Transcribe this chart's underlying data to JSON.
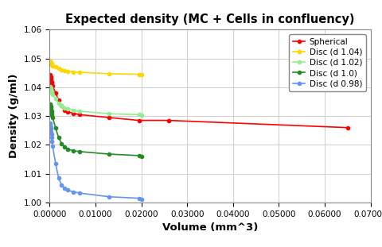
{
  "title": "Expected density (MC + Cells in confluency)",
  "xlabel": "Volume (mm^3)",
  "ylabel": "Density (g/ml)",
  "xlim": [
    0,
    0.07
  ],
  "ylim": [
    1.0,
    1.06
  ],
  "xticks": [
    0.0,
    0.01,
    0.02,
    0.03,
    0.04,
    0.05,
    0.06,
    0.07
  ],
  "xtick_labels": [
    "0.00000",
    "0.01000",
    "0.02000",
    "0.03000",
    "0.04000",
    "0.05000",
    "0.06000",
    "0.07000"
  ],
  "yticks": [
    1.0,
    1.01,
    1.02,
    1.03,
    1.04,
    1.05,
    1.06
  ],
  "series": [
    {
      "label": "Spherical",
      "color": "#FF0000",
      "x": [
        6.5e-05,
        0.00013,
        0.000195,
        0.00026,
        0.000325,
        0.00039,
        0.000455,
        0.00052,
        0.00065,
        0.0013,
        0.00195,
        0.0026,
        0.00325,
        0.0039,
        0.0052,
        0.0065,
        0.013,
        0.0195,
        0.026,
        0.065
      ],
      "y": [
        1.0445,
        1.044,
        1.0435,
        1.043,
        1.0425,
        1.042,
        1.0415,
        1.041,
        1.0405,
        1.038,
        1.0355,
        1.0335,
        1.032,
        1.0315,
        1.031,
        1.0305,
        1.0295,
        1.0285,
        1.0285,
        1.026
      ]
    },
    {
      "label": "Disc (d 1.04)",
      "color": "#FFD700",
      "x": [
        6.5e-05,
        0.00013,
        0.000195,
        0.00026,
        0.000325,
        0.00039,
        0.000455,
        0.00052,
        0.00065,
        0.0013,
        0.00195,
        0.0026,
        0.00325,
        0.0039,
        0.0052,
        0.0065,
        0.013,
        0.0195,
        0.02
      ],
      "y": [
        1.0492,
        1.049,
        1.0488,
        1.0486,
        1.0484,
        1.0481,
        1.0479,
        1.0477,
        1.0475,
        1.047,
        1.0465,
        1.046,
        1.0458,
        1.0456,
        1.0453,
        1.0452,
        1.0447,
        1.0445,
        1.0445
      ]
    },
    {
      "label": "Disc (d 1.02)",
      "color": "#90EE90",
      "x": [
        6.5e-05,
        0.00013,
        0.000195,
        0.00026,
        0.000325,
        0.00039,
        0.000455,
        0.00052,
        0.00065,
        0.0013,
        0.00195,
        0.0026,
        0.00325,
        0.0039,
        0.0052,
        0.0065,
        0.013,
        0.0195,
        0.02
      ],
      "y": [
        1.0402,
        1.0399,
        1.0396,
        1.0392,
        1.0389,
        1.0385,
        1.0382,
        1.038,
        1.0376,
        1.036,
        1.0345,
        1.0335,
        1.0328,
        1.0324,
        1.032,
        1.0317,
        1.0308,
        1.0305,
        1.0302
      ]
    },
    {
      "label": "Disc (d 1.0)",
      "color": "#228B22",
      "x": [
        6.5e-05,
        0.00013,
        0.000195,
        0.00026,
        0.000325,
        0.00039,
        0.000455,
        0.00052,
        0.00065,
        0.0013,
        0.00195,
        0.0026,
        0.00325,
        0.0039,
        0.0052,
        0.0065,
        0.013,
        0.0195,
        0.02
      ],
      "y": [
        1.0342,
        1.0338,
        1.0333,
        1.0328,
        1.0322,
        1.0316,
        1.031,
        1.0304,
        1.0295,
        1.0258,
        1.0225,
        1.0205,
        1.0192,
        1.0185,
        1.018,
        1.0177,
        1.0168,
        1.0163,
        1.016
      ]
    },
    {
      "label": "Disc (d 0.98)",
      "color": "#6495ED",
      "x": [
        6.5e-05,
        0.00013,
        0.000195,
        0.00026,
        0.000325,
        0.00039,
        0.000455,
        0.00052,
        0.00065,
        0.0013,
        0.00195,
        0.0026,
        0.00325,
        0.0039,
        0.0052,
        0.0065,
        0.013,
        0.0195,
        0.02
      ],
      "y": [
        1.0275,
        1.027,
        1.0263,
        1.0255,
        1.0246,
        1.0236,
        1.0225,
        1.0213,
        1.0195,
        1.0135,
        1.0085,
        1.006,
        1.005,
        1.0043,
        1.0037,
        1.0033,
        1.002,
        1.0015,
        1.001
      ]
    }
  ],
  "background_color": "#FFFFFF",
  "plot_bg_color": "#FFFFFF",
  "grid_color": "#C8C8C8",
  "title_fontsize": 10.5,
  "axis_label_fontsize": 9.5,
  "tick_fontsize": 7.5,
  "legend_fontsize": 7.5,
  "fig_width": 4.8,
  "fig_height": 3.11,
  "dpi": 100
}
